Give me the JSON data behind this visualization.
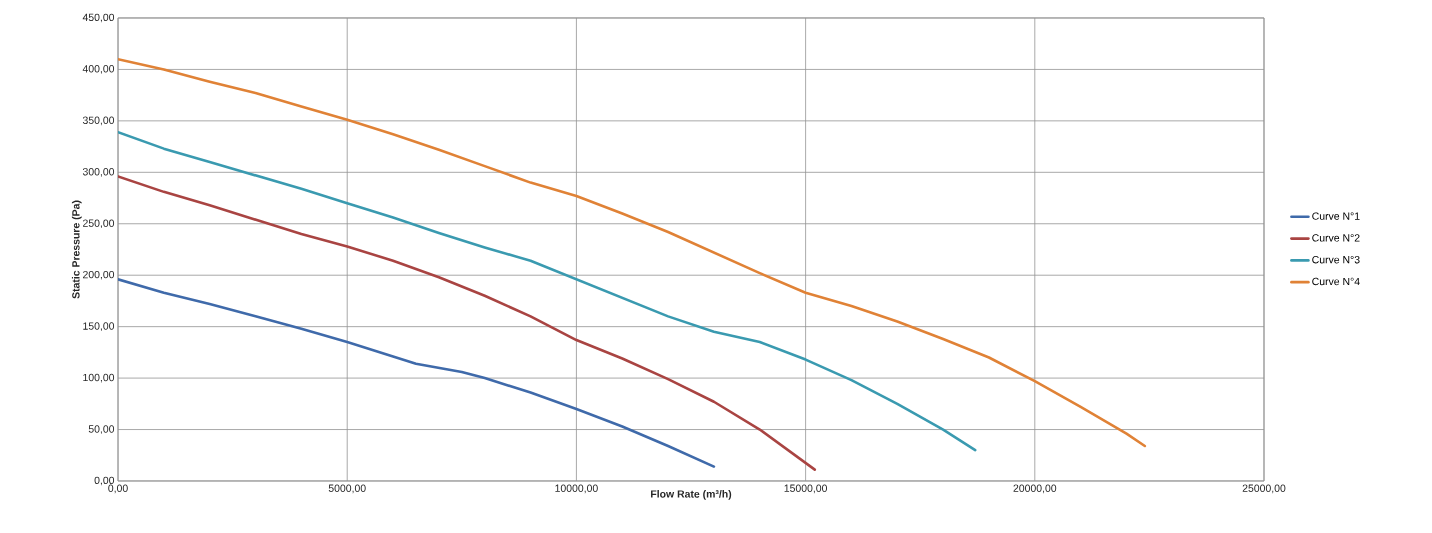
{
  "chart_data": {
    "type": "line",
    "xlabel": "Flow Rate (m³/h)",
    "ylabel": "Static Pressure (Pa)",
    "xlim": [
      0,
      25000
    ],
    "ylim": [
      0,
      450
    ],
    "xticks": [
      {
        "value": 0,
        "label": "0,00"
      },
      {
        "value": 5000,
        "label": "5000,00"
      },
      {
        "value": 10000,
        "label": "10000,00"
      },
      {
        "value": 15000,
        "label": "15000,00"
      },
      {
        "value": 20000,
        "label": "20000,00"
      },
      {
        "value": 25000,
        "label": "25000,00"
      }
    ],
    "yticks": [
      {
        "value": 0,
        "label": "0,00"
      },
      {
        "value": 50,
        "label": "50,00"
      },
      {
        "value": 100,
        "label": "100,00"
      },
      {
        "value": 150,
        "label": "150,00"
      },
      {
        "value": 200,
        "label": "200,00"
      },
      {
        "value": 250,
        "label": "250,00"
      },
      {
        "value": 300,
        "label": "300,00"
      },
      {
        "value": 350,
        "label": "350,00"
      },
      {
        "value": 400,
        "label": "400,00"
      },
      {
        "value": 450,
        "label": "450,00"
      }
    ],
    "grid": true,
    "legend": "right",
    "marker": "none",
    "line_style": "solid",
    "series": [
      {
        "name": "Curve N°1",
        "color": "#3f6aaa",
        "x": [
          0,
          1000,
          2000,
          3000,
          4000,
          5000,
          6000,
          6500,
          7500,
          8000,
          9000,
          10000,
          11000,
          12000,
          13000
        ],
        "values": [
          196,
          183,
          172,
          160,
          148,
          135,
          121,
          114,
          106,
          100,
          86,
          70,
          53,
          34,
          14
        ]
      },
      {
        "name": "Curve N°2",
        "color": "#a94442",
        "x": [
          0,
          1000,
          2000,
          3000,
          4000,
          5000,
          6000,
          7000,
          8000,
          9000,
          10000,
          11000,
          12000,
          13000,
          14000,
          15200
        ],
        "values": [
          296,
          281,
          268,
          254,
          240,
          228,
          214,
          198,
          180,
          160,
          137,
          119,
          99,
          77,
          50,
          11
        ]
      },
      {
        "name": "Curve N°3",
        "color": "#3a9ab0",
        "x": [
          0,
          1000,
          2000,
          3000,
          4000,
          5000,
          6000,
          7000,
          8000,
          9000,
          10000,
          11000,
          12000,
          13000,
          14000,
          15000,
          16000,
          17000,
          18000,
          18700
        ],
        "values": [
          339,
          323,
          310,
          297,
          284,
          270,
          256,
          241,
          227,
          214,
          196,
          178,
          160,
          145,
          135,
          118,
          98,
          75,
          50,
          30
        ]
      },
      {
        "name": "Curve N°4",
        "color": "#e08236",
        "x": [
          0,
          1000,
          2000,
          3000,
          4000,
          5000,
          6000,
          7000,
          8000,
          9000,
          10000,
          11000,
          12000,
          13000,
          14000,
          15000,
          16000,
          17000,
          18000,
          19000,
          20000,
          21000,
          22000,
          22400
        ],
        "values": [
          410,
          400,
          388,
          377,
          364,
          351,
          337,
          322,
          306,
          290,
          277,
          260,
          242,
          222,
          202,
          183,
          170,
          155,
          138,
          120,
          97,
          72,
          46,
          34
        ]
      }
    ]
  }
}
